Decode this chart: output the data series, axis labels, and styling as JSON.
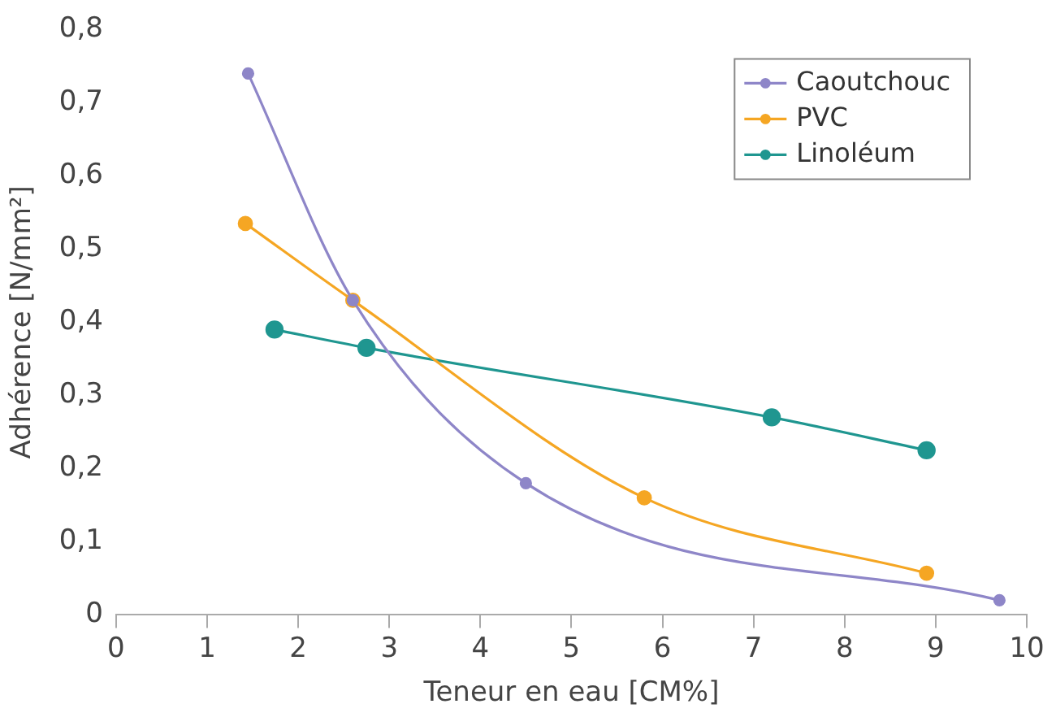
{
  "chart_data": {
    "type": "line",
    "xlabel": "Teneur en eau [CM%]",
    "ylabel": "Adhérence [N/mm²]",
    "xlim": [
      0,
      10
    ],
    "xticks": [
      0,
      1,
      2,
      3,
      4,
      5,
      6,
      7,
      8,
      9,
      10
    ],
    "ylim": [
      0,
      0.8
    ],
    "yticks": [
      {
        "value": 0,
        "label": "0"
      },
      {
        "value": 0.1,
        "label": "0,1"
      },
      {
        "value": 0.2,
        "label": "0,2"
      },
      {
        "value": 0.3,
        "label": "0,3"
      },
      {
        "value": 0.4,
        "label": "0,4"
      },
      {
        "value": 0.5,
        "label": "0,5"
      },
      {
        "value": 0.6,
        "label": "0,6"
      },
      {
        "value": 0.7,
        "label": "0,7"
      },
      {
        "value": 0.8,
        "label": "0,8"
      }
    ],
    "grid": false,
    "legend": "top right",
    "marker": "circle",
    "line_style": "solid",
    "series": [
      {
        "name": "Caoutchouc",
        "color": "#8e86c8",
        "x": [
          1.45,
          2.6,
          4.5,
          9.7
        ],
        "values": [
          0.74,
          0.43,
          0.18,
          0.02
        ]
      },
      {
        "name": "PVC",
        "color": "#f5a623",
        "x": [
          1.42,
          2.6,
          5.8,
          8.9
        ],
        "values": [
          0.535,
          0.43,
          0.16,
          0.057
        ]
      },
      {
        "name": "Linoléum",
        "color": "#1f9690",
        "x": [
          1.74,
          2.75,
          7.2,
          8.9
        ],
        "values": [
          0.39,
          0.365,
          0.27,
          0.225
        ]
      }
    ]
  }
}
